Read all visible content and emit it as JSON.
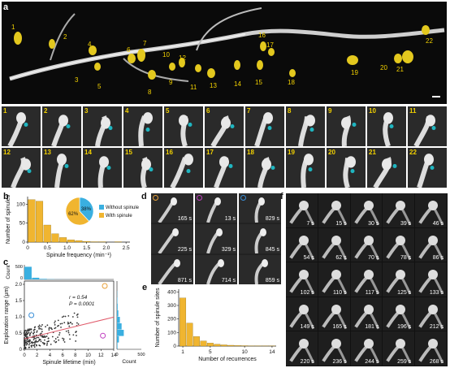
{
  "panels": {
    "a": "a",
    "b": "b",
    "c": "c",
    "d": "d",
    "e": "e",
    "f": "f"
  },
  "panel_a": {
    "yellow_labels": [
      "1",
      "2",
      "3",
      "4",
      "5",
      "6",
      "7",
      "8",
      "9",
      "10",
      "11",
      "12",
      "13",
      "14",
      "15",
      "16",
      "17",
      "18",
      "19",
      "20",
      "21",
      "22"
    ]
  },
  "gallery": {
    "labels": [
      "1",
      "2",
      "3",
      "4",
      "5",
      "6",
      "7",
      "8",
      "9",
      "10",
      "11",
      "12",
      "13",
      "14",
      "15",
      "16",
      "17",
      "18",
      "19",
      "20",
      "21",
      "22"
    ]
  },
  "panel_d": {
    "columns": [
      {
        "marker_color": "#e8a13a",
        "times": [
          "165 s",
          "225 s",
          "871 s"
        ]
      },
      {
        "marker_color": "#c040c0",
        "times": [
          "13 s",
          "329 s",
          "714 s"
        ]
      },
      {
        "marker_color": "#3a8fd8",
        "times": [
          "829 s",
          "845 s",
          "859 s"
        ]
      }
    ]
  },
  "panel_f": {
    "times": [
      "7 s",
      "15 s",
      "30 s",
      "39 s",
      "46 s",
      "54 s",
      "62 s",
      "70 s",
      "78 s",
      "86 s",
      "102 s",
      "110 s",
      "117 s",
      "125 s",
      "133 s",
      "149 s",
      "165 s",
      "181 s",
      "196 s",
      "212 s",
      "220 s",
      "236 s",
      "244 s",
      "259 s",
      "268 s"
    ]
  },
  "chart_data": [
    {
      "type": "bar",
      "panel": "b",
      "xlabel": "Spinule frequency (min⁻¹)",
      "ylabel": "Number of spinules",
      "x_ticks": [
        "0",
        "0.5",
        "1.0",
        "1.5",
        "2.0",
        "2.5"
      ],
      "y_ticks": [
        "0",
        "50",
        "100"
      ],
      "xlim": [
        0,
        2.6
      ],
      "ylim": [
        0,
        120
      ],
      "bin_width": 0.2,
      "bins": [
        0.1,
        0.3,
        0.5,
        0.7,
        0.9,
        1.1,
        1.3,
        1.5,
        1.7,
        1.9,
        2.1,
        2.3
      ],
      "values": [
        112,
        108,
        45,
        22,
        12,
        6,
        4,
        2,
        1,
        1,
        0,
        1
      ],
      "bar_color": "#f0b530",
      "inset_pie": {
        "slices": [
          {
            "label": "38%",
            "value": 38,
            "color": "#3aafe0",
            "legend": "Without spinule"
          },
          {
            "label": "62%",
            "value": 62,
            "color": "#f0b530",
            "legend": "With spinule"
          }
        ]
      }
    },
    {
      "type": "scatter",
      "panel": "c",
      "xlabel": "Spinule lifetime (min)",
      "ylabel": "Exploration range (μm)",
      "x_ticks": [
        "0",
        "2",
        "4",
        "6",
        "8",
        "10",
        "12",
        "14"
      ],
      "y_ticks": [
        "0",
        "0.5",
        "1.0",
        "1.5",
        "2.0"
      ],
      "xlim": [
        0,
        14
      ],
      "ylim": [
        0,
        2.1
      ],
      "annotation_r": "r = 0.54",
      "annotation_p": "P = 0.0001",
      "fit_line": {
        "x": [
          0,
          14
        ],
        "y": [
          0.32,
          0.99
        ],
        "color": "#e05a6a"
      },
      "highlighted_points": [
        {
          "x": 12.6,
          "y": 1.95,
          "color": "#e8a13a"
        },
        {
          "x": 12.3,
          "y": 0.42,
          "color": "#c040c0"
        },
        {
          "x": 1.1,
          "y": 1.05,
          "color": "#3a8fd8"
        }
      ],
      "top_hist": {
        "ylabel": "Count",
        "y_ticks": [
          "0",
          "500"
        ],
        "values": [
          520,
          70,
          25,
          10,
          5,
          3
        ]
      },
      "right_hist": {
        "xlabel": "Count",
        "x_ticks": [
          "0",
          "500"
        ],
        "values": [
          10,
          40,
          140,
          95,
          60,
          28,
          14,
          8,
          4
        ]
      }
    },
    {
      "type": "bar",
      "panel": "e",
      "xlabel": "Number of recurrences",
      "ylabel": "Number of spinule sites",
      "x_ticks": [
        "1",
        "5",
        "10",
        "14"
      ],
      "y_ticks": [
        "0",
        "100",
        "200",
        "300",
        "400"
      ],
      "xlim": [
        0.4,
        14.6
      ],
      "ylim": [
        0,
        420
      ],
      "categories": [
        1,
        2,
        3,
        4,
        5,
        6,
        7,
        8,
        9,
        10,
        11,
        12,
        13,
        14
      ],
      "values": [
        355,
        170,
        70,
        38,
        22,
        14,
        9,
        6,
        4,
        3,
        2,
        2,
        1,
        1
      ],
      "bar_color": "#f0b530"
    }
  ]
}
